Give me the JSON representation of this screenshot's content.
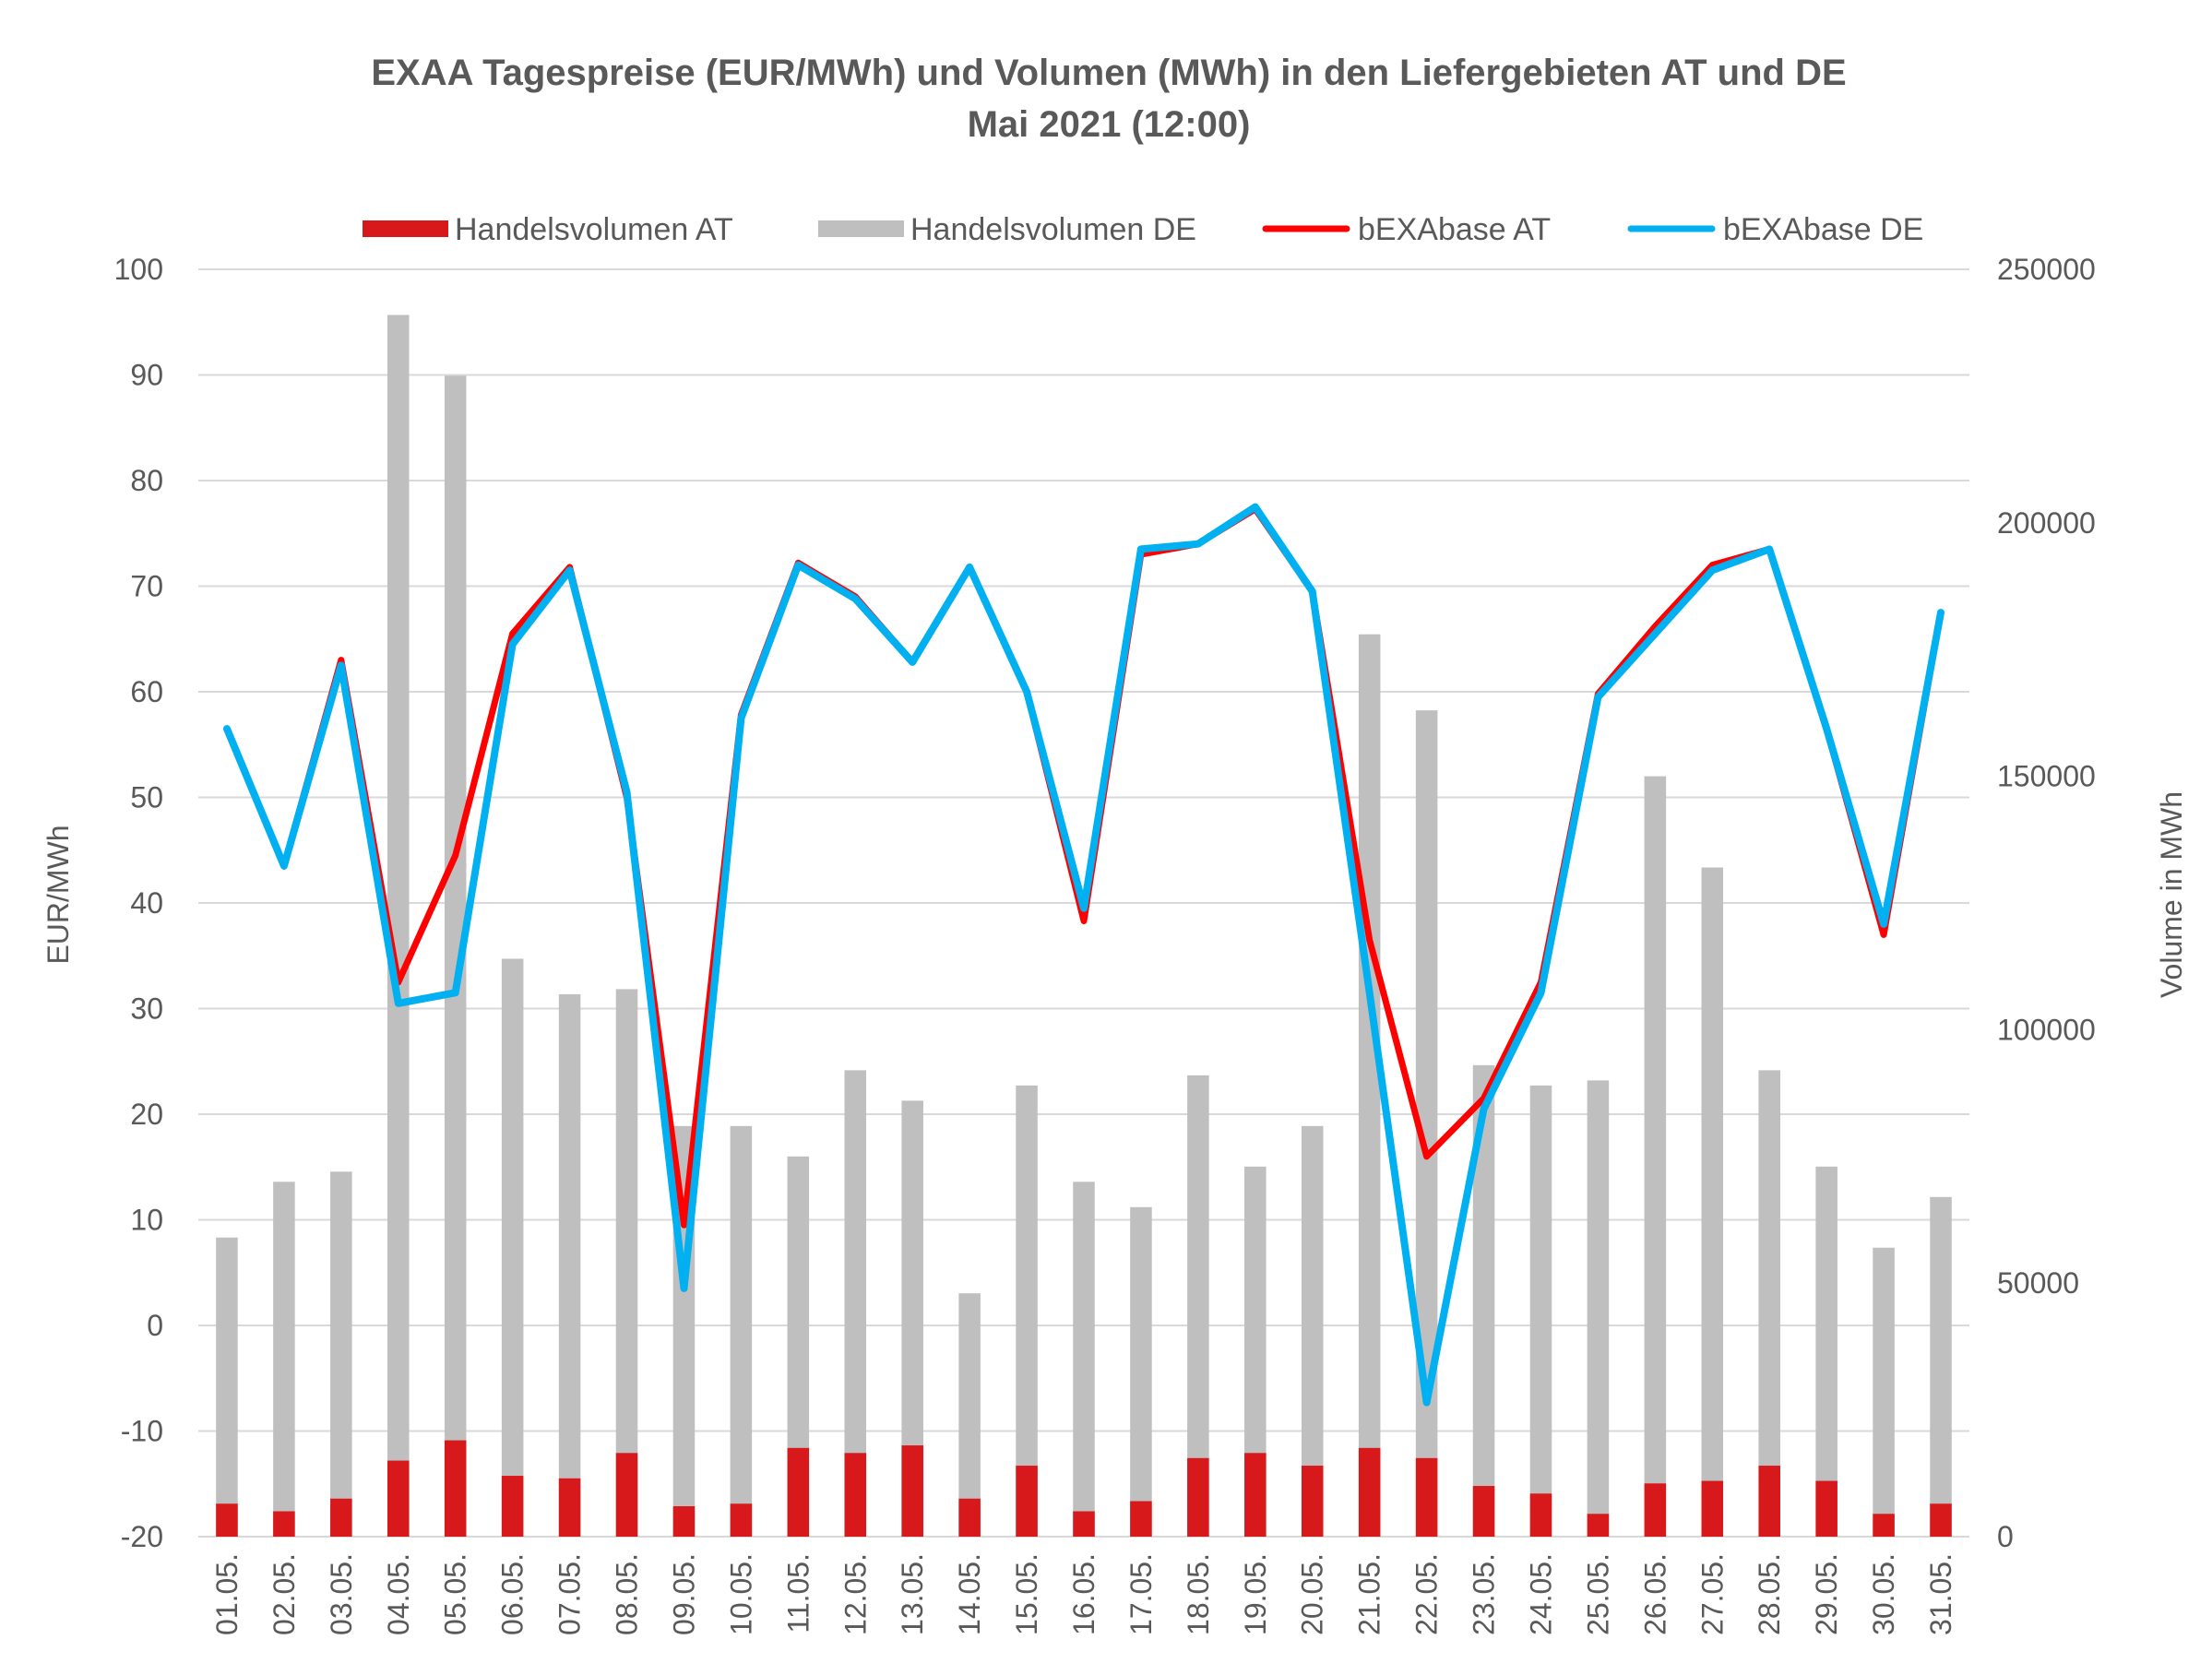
{
  "chart_data": {
    "type": "bar",
    "title": "EXAA Tagespreise (EUR/MWh) und Volumen (MWh) in den Liefergebieten AT und DE",
    "subtitle": "Mai 2021 (12:00)",
    "ylabel_left": "EUR/MWh",
    "ylabel_right": "Volume in MWh",
    "ylim_left": [
      -20,
      100
    ],
    "ylim_right": [
      0,
      250000
    ],
    "yticks_left": [
      "100",
      "90",
      "80",
      "70",
      "60",
      "50",
      "40",
      "30",
      "20",
      "10",
      "0",
      "-10",
      "-20"
    ],
    "yticks_right": [
      "250000",
      "200000",
      "150000",
      "100000",
      "50000",
      "0"
    ],
    "grid": true,
    "legend_position": "top",
    "categories": [
      "01.05.",
      "02.05.",
      "03.05.",
      "04.05.",
      "05.05.",
      "06.05.",
      "07.05.",
      "08.05.",
      "09.05.",
      "10.05.",
      "11.05.",
      "12.05.",
      "13.05.",
      "14.05.",
      "15.05.",
      "16.05.",
      "17.05.",
      "18.05.",
      "19.05.",
      "20.05.",
      "21.05.",
      "22.05.",
      "23.05.",
      "24.05.",
      "25.05.",
      "26.05.",
      "27.05.",
      "28.05.",
      "29.05.",
      "30.05.",
      "31.05."
    ],
    "series": [
      {
        "name": "Handelsvolumen AT",
        "kind": "bar",
        "axis": "right",
        "color": "#d7191c",
        "values": [
          6500,
          5000,
          7500,
          15000,
          19000,
          12000,
          11500,
          16500,
          6000,
          6500,
          17500,
          16500,
          18000,
          7500,
          14000,
          5000,
          7000,
          15500,
          16500,
          14000,
          17500,
          15500,
          10000,
          8500,
          4500,
          10500,
          11000,
          14000,
          11000,
          4500,
          6500
        ]
      },
      {
        "name": "Handelsvolumen DE",
        "kind": "bar",
        "axis": "right",
        "color": "#bfbfbf",
        "values": [
          59000,
          70000,
          72000,
          241000,
          229000,
          114000,
          107000,
          108000,
          81000,
          81000,
          75000,
          92000,
          86000,
          48000,
          89000,
          70000,
          65000,
          91000,
          73000,
          81000,
          178000,
          163000,
          93000,
          89000,
          90000,
          150000,
          132000,
          92000,
          73000,
          57000,
          67000
        ]
      },
      {
        "name": "bEXAbase AT",
        "kind": "line",
        "axis": "left",
        "color": "#ff0000",
        "values": [
          56.5,
          43.5,
          63.0,
          32.5,
          44.5,
          65.5,
          71.8,
          50.0,
          9.5,
          57.8,
          72.2,
          69.0,
          62.8,
          71.8,
          60.0,
          38.3,
          73.0,
          74.0,
          77.3,
          69.5,
          36.5,
          16.0,
          21.5,
          32.5,
          59.8,
          66.2,
          72.0,
          73.5,
          56.5,
          37.0,
          67.5
        ]
      },
      {
        "name": "bEXAbase DE",
        "kind": "line",
        "axis": "left",
        "color": "#00b0f0",
        "values": [
          56.5,
          43.5,
          62.5,
          30.5,
          31.5,
          64.5,
          71.5,
          50.5,
          3.5,
          57.5,
          72.0,
          68.8,
          62.8,
          71.8,
          60.0,
          39.5,
          73.5,
          74.0,
          77.5,
          69.5,
          31.5,
          -7.3,
          20.5,
          31.5,
          59.5,
          65.5,
          71.5,
          73.5,
          56.5,
          38.0,
          67.5
        ]
      }
    ]
  }
}
